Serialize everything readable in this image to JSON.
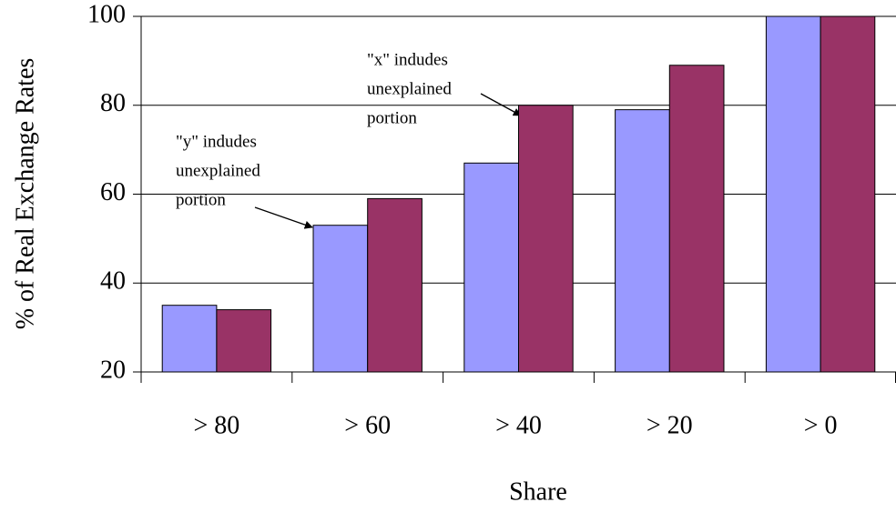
{
  "chart_data": {
    "type": "bar",
    "x_label": "Share",
    "y_label": "% of Real Exchange Rates",
    "categories": [
      "> 80",
      "> 60",
      "> 40",
      "> 20",
      "> 0"
    ],
    "series": [
      {
        "color": "#9999ff",
        "values": [
          35,
          53,
          67,
          79,
          100
        ]
      },
      {
        "color": "#993366",
        "values": [
          34,
          59,
          80,
          89,
          100
        ]
      }
    ],
    "ylim": [
      20,
      100
    ],
    "yticks": [
      20,
      40,
      60,
      80,
      100
    ],
    "grid": true,
    "annotations": [
      {
        "lines": [
          "\"y\" indudes",
          "unexplained",
          "portion"
        ]
      },
      {
        "lines": [
          "\"x\" indudes",
          "unexplained",
          "portion"
        ]
      }
    ]
  }
}
